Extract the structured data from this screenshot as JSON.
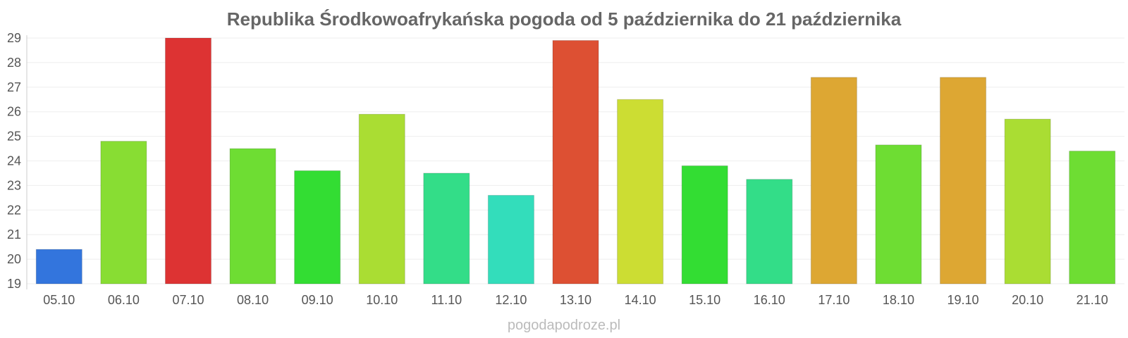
{
  "chart_data": {
    "type": "bar",
    "title": "Republika Środkowoafrykańska pogoda od 5 października do 21 października",
    "categories": [
      "05.10",
      "06.10",
      "07.10",
      "08.10",
      "09.10",
      "10.10",
      "11.10",
      "12.10",
      "13.10",
      "14.10",
      "15.10",
      "16.10",
      "17.10",
      "18.10",
      "19.10",
      "20.10",
      "21.10"
    ],
    "values": [
      20.4,
      24.8,
      29.0,
      24.5,
      23.6,
      25.9,
      23.5,
      22.6,
      28.9,
      26.5,
      23.8,
      23.25,
      27.4,
      24.65,
      27.4,
      25.7,
      24.4
    ],
    "colors": [
      "#3375dd",
      "#88dd33",
      "#dd3333",
      "#6edd33",
      "#33dd33",
      "#aadd33",
      "#33dd88",
      "#33ddbb",
      "#dd5033",
      "#ccdd33",
      "#33dd33",
      "#33dd88",
      "#dda733",
      "#6edd33",
      "#dda733",
      "#aadd33",
      "#6edd33"
    ],
    "ylim": [
      19,
      29
    ],
    "yticks": [
      19,
      20,
      21,
      22,
      23,
      24,
      25,
      26,
      27,
      28,
      29
    ],
    "xlabel": "",
    "ylabel": "",
    "grid": true,
    "legend": "none"
  },
  "watermark": "pogodapodroze.pl"
}
